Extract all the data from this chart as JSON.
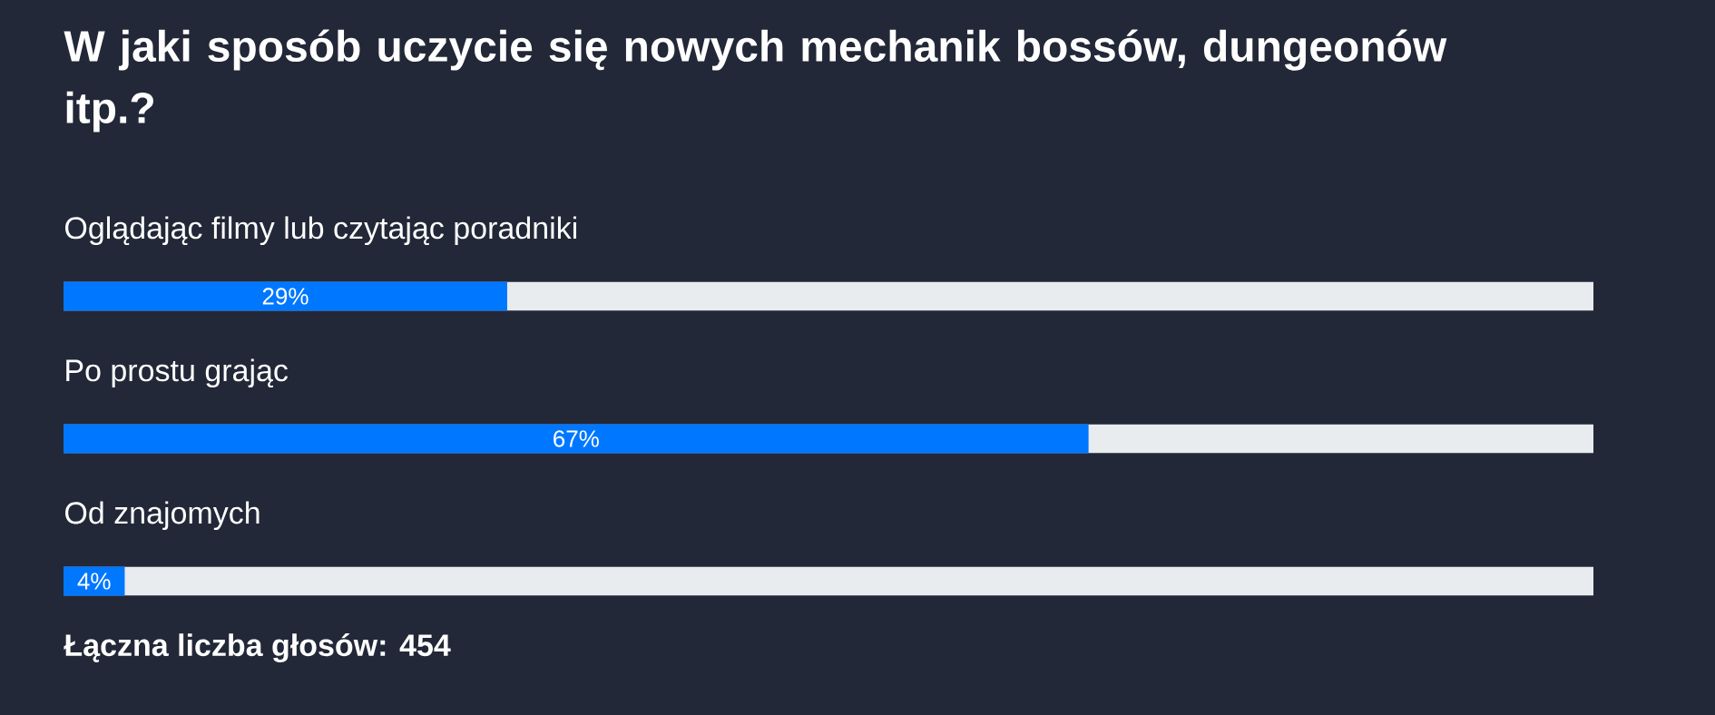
{
  "chart_data": {
    "type": "bar",
    "orientation": "horizontal",
    "title": "W jaki sposób uczycie się nowych mechanik bossów, dungeonów itp.?",
    "categories": [
      "Oglądając filmy lub czytając poradniki",
      "Po prostu grając",
      "Od znajomych"
    ],
    "values": [
      29,
      67,
      4
    ],
    "value_labels": [
      "29%",
      "67%",
      "4%"
    ],
    "color": "#0077ff",
    "xlim": [
      0,
      100
    ],
    "annotations": [
      "Łączna liczba głosów: 454"
    ]
  }
}
